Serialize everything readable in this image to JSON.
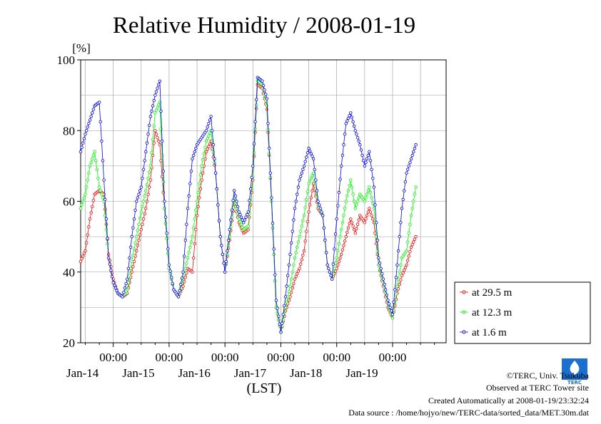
{
  "chart_data": {
    "type": "line",
    "title": "Relative Humidity / 2008-01-19",
    "ylabel": "[%]",
    "xlabel": "(LST)",
    "ylim": [
      20,
      100
    ],
    "yticks": [
      "20",
      "40",
      "60",
      "80",
      "100"
    ],
    "xlim_days": [
      "2008-01-13 10:00",
      "2008-01-19 23:00"
    ],
    "time_ticks": [
      {
        "label": "00:00",
        "day": "Jan-14"
      },
      {
        "label": "00:00",
        "day": "Jan-15"
      },
      {
        "label": "00:00",
        "day": "Jan-16"
      },
      {
        "label": "00:00",
        "day": "Jan-17"
      },
      {
        "label": "00:00",
        "day": "Jan-18"
      },
      {
        "label": "00:00",
        "day": "Jan-19"
      }
    ],
    "grid": true,
    "legend_position": "right",
    "series": [
      {
        "name": "at 29.5 m",
        "color": "#ff0000",
        "points": [
          [
            "2008-01-13 10:00",
            43
          ],
          [
            "2008-01-13 12:00",
            46
          ],
          [
            "2008-01-13 14:00",
            55
          ],
          [
            "2008-01-13 16:00",
            62
          ],
          [
            "2008-01-13 18:00",
            63
          ],
          [
            "2008-01-13 20:00",
            62
          ],
          [
            "2008-01-13 22:00",
            45
          ],
          [
            "2008-01-14 00:00",
            38
          ],
          [
            "2008-01-14 02:00",
            34
          ],
          [
            "2008-01-14 04:00",
            33
          ],
          [
            "2008-01-14 06:00",
            34
          ],
          [
            "2008-01-14 08:00",
            40
          ],
          [
            "2008-01-14 10:00",
            46
          ],
          [
            "2008-01-14 12:00",
            52
          ],
          [
            "2008-01-14 14:00",
            58
          ],
          [
            "2008-01-14 16:00",
            66
          ],
          [
            "2008-01-14 18:00",
            80
          ],
          [
            "2008-01-14 20:00",
            76
          ],
          [
            "2008-01-14 22:00",
            58
          ],
          [
            "2008-01-15 00:00",
            41
          ],
          [
            "2008-01-15 02:00",
            35
          ],
          [
            "2008-01-15 04:00",
            33
          ],
          [
            "2008-01-15 06:00",
            36
          ],
          [
            "2008-01-15 08:00",
            41
          ],
          [
            "2008-01-15 10:00",
            40
          ],
          [
            "2008-01-15 12:00",
            56
          ],
          [
            "2008-01-15 14:00",
            66
          ],
          [
            "2008-01-15 16:00",
            74
          ],
          [
            "2008-01-15 18:00",
            77
          ],
          [
            "2008-01-15 20:00",
            68
          ],
          [
            "2008-01-15 22:00",
            50
          ],
          [
            "2008-01-16 00:00",
            40
          ],
          [
            "2008-01-16 02:00",
            49
          ],
          [
            "2008-01-16 04:00",
            60
          ],
          [
            "2008-01-16 06:00",
            54
          ],
          [
            "2008-01-16 08:00",
            51
          ],
          [
            "2008-01-16 10:00",
            52
          ],
          [
            "2008-01-16 12:00",
            66
          ],
          [
            "2008-01-16 14:00",
            93
          ],
          [
            "2008-01-16 16:00",
            92
          ],
          [
            "2008-01-16 18:00",
            86
          ],
          [
            "2008-01-16 20:00",
            60
          ],
          [
            "2008-01-16 22:00",
            30
          ],
          [
            "2008-01-17 00:00",
            23
          ],
          [
            "2008-01-17 02:00",
            29
          ],
          [
            "2008-01-17 04:00",
            33
          ],
          [
            "2008-01-17 06:00",
            38
          ],
          [
            "2008-01-17 08:00",
            41
          ],
          [
            "2008-01-17 10:00",
            46
          ],
          [
            "2008-01-17 12:00",
            57
          ],
          [
            "2008-01-17 14:00",
            65
          ],
          [
            "2008-01-17 16:00",
            58
          ],
          [
            "2008-01-17 18:00",
            56
          ],
          [
            "2008-01-17 20:00",
            42
          ],
          [
            "2008-01-17 22:00",
            38
          ],
          [
            "2008-01-18 00:00",
            41
          ],
          [
            "2008-01-18 02:00",
            45
          ],
          [
            "2008-01-18 04:00",
            50
          ],
          [
            "2008-01-18 06:00",
            55
          ],
          [
            "2008-01-18 08:00",
            51
          ],
          [
            "2008-01-18 10:00",
            56
          ],
          [
            "2008-01-18 12:00",
            54
          ],
          [
            "2008-01-18 14:00",
            58
          ],
          [
            "2008-01-18 16:00",
            54
          ],
          [
            "2008-01-18 18:00",
            42
          ],
          [
            "2008-01-18 20:00",
            36
          ],
          [
            "2008-01-18 22:00",
            30
          ],
          [
            "2008-01-19 00:00",
            27
          ],
          [
            "2008-01-19 02:00",
            34
          ],
          [
            "2008-01-19 04:00",
            39
          ],
          [
            "2008-01-19 06:00",
            42
          ],
          [
            "2008-01-19 08:00",
            47
          ],
          [
            "2008-01-19 10:00",
            50
          ]
        ]
      },
      {
        "name": "at 12.3 m",
        "color": "#00ff00",
        "points": [
          [
            "2008-01-13 10:00",
            58
          ],
          [
            "2008-01-13 12:00",
            62
          ],
          [
            "2008-01-13 14:00",
            70
          ],
          [
            "2008-01-13 16:00",
            74
          ],
          [
            "2008-01-13 18:00",
            64
          ],
          [
            "2008-01-13 20:00",
            60
          ],
          [
            "2008-01-13 22:00",
            44
          ],
          [
            "2008-01-14 00:00",
            37
          ],
          [
            "2008-01-14 02:00",
            34
          ],
          [
            "2008-01-14 04:00",
            33
          ],
          [
            "2008-01-14 06:00",
            35
          ],
          [
            "2008-01-14 08:00",
            43
          ],
          [
            "2008-01-14 10:00",
            50
          ],
          [
            "2008-01-14 12:00",
            57
          ],
          [
            "2008-01-14 14:00",
            63
          ],
          [
            "2008-01-14 16:00",
            70
          ],
          [
            "2008-01-14 18:00",
            85
          ],
          [
            "2008-01-14 20:00",
            88
          ],
          [
            "2008-01-14 22:00",
            58
          ],
          [
            "2008-01-15 00:00",
            41
          ],
          [
            "2008-01-15 02:00",
            35
          ],
          [
            "2008-01-15 04:00",
            33
          ],
          [
            "2008-01-15 06:00",
            38
          ],
          [
            "2008-01-15 08:00",
            44
          ],
          [
            "2008-01-15 10:00",
            50
          ],
          [
            "2008-01-15 12:00",
            60
          ],
          [
            "2008-01-15 14:00",
            70
          ],
          [
            "2008-01-15 16:00",
            77
          ],
          [
            "2008-01-15 18:00",
            80
          ],
          [
            "2008-01-15 20:00",
            68
          ],
          [
            "2008-01-15 22:00",
            50
          ],
          [
            "2008-01-16 00:00",
            40
          ],
          [
            "2008-01-16 02:00",
            50
          ],
          [
            "2008-01-16 04:00",
            61
          ],
          [
            "2008-01-16 06:00",
            55
          ],
          [
            "2008-01-16 08:00",
            52
          ],
          [
            "2008-01-16 10:00",
            53
          ],
          [
            "2008-01-16 12:00",
            67
          ],
          [
            "2008-01-16 14:00",
            94
          ],
          [
            "2008-01-16 16:00",
            93
          ],
          [
            "2008-01-16 18:00",
            87
          ],
          [
            "2008-01-16 20:00",
            60
          ],
          [
            "2008-01-16 22:00",
            30
          ],
          [
            "2008-01-17 00:00",
            23
          ],
          [
            "2008-01-17 02:00",
            30
          ],
          [
            "2008-01-17 04:00",
            36
          ],
          [
            "2008-01-17 06:00",
            44
          ],
          [
            "2008-01-17 08:00",
            50
          ],
          [
            "2008-01-17 10:00",
            56
          ],
          [
            "2008-01-17 12:00",
            65
          ],
          [
            "2008-01-17 14:00",
            68
          ],
          [
            "2008-01-17 16:00",
            59
          ],
          [
            "2008-01-17 18:00",
            56
          ],
          [
            "2008-01-17 20:00",
            42
          ],
          [
            "2008-01-17 22:00",
            38
          ],
          [
            "2008-01-18 00:00",
            44
          ],
          [
            "2008-01-18 02:00",
            52
          ],
          [
            "2008-01-18 04:00",
            60
          ],
          [
            "2008-01-18 06:00",
            66
          ],
          [
            "2008-01-18 08:00",
            58
          ],
          [
            "2008-01-18 10:00",
            62
          ],
          [
            "2008-01-18 12:00",
            60
          ],
          [
            "2008-01-18 14:00",
            64
          ],
          [
            "2008-01-18 16:00",
            58
          ],
          [
            "2008-01-18 18:00",
            42
          ],
          [
            "2008-01-18 20:00",
            37
          ],
          [
            "2008-01-18 22:00",
            31
          ],
          [
            "2008-01-19 00:00",
            27
          ],
          [
            "2008-01-19 02:00",
            36
          ],
          [
            "2008-01-19 04:00",
            44
          ],
          [
            "2008-01-19 06:00",
            46
          ],
          [
            "2008-01-19 08:00",
            56
          ],
          [
            "2008-01-19 10:00",
            64
          ]
        ]
      },
      {
        "name": "at 1.6 m",
        "color": "#0000ff",
        "points": [
          [
            "2008-01-13 10:00",
            74
          ],
          [
            "2008-01-13 12:00",
            79
          ],
          [
            "2008-01-13 14:00",
            83
          ],
          [
            "2008-01-13 16:00",
            87
          ],
          [
            "2008-01-13 18:00",
            88
          ],
          [
            "2008-01-13 20:00",
            66
          ],
          [
            "2008-01-13 22:00",
            44
          ],
          [
            "2008-01-14 00:00",
            37
          ],
          [
            "2008-01-14 02:00",
            34
          ],
          [
            "2008-01-14 04:00",
            33
          ],
          [
            "2008-01-14 06:00",
            38
          ],
          [
            "2008-01-14 08:00",
            50
          ],
          [
            "2008-01-14 10:00",
            60
          ],
          [
            "2008-01-14 12:00",
            64
          ],
          [
            "2008-01-14 14:00",
            74
          ],
          [
            "2008-01-14 16:00",
            84
          ],
          [
            "2008-01-14 18:00",
            90
          ],
          [
            "2008-01-14 20:00",
            94
          ],
          [
            "2008-01-14 22:00",
            60
          ],
          [
            "2008-01-15 00:00",
            42
          ],
          [
            "2008-01-15 02:00",
            35
          ],
          [
            "2008-01-15 04:00",
            33
          ],
          [
            "2008-01-15 06:00",
            40
          ],
          [
            "2008-01-15 08:00",
            58
          ],
          [
            "2008-01-15 10:00",
            72
          ],
          [
            "2008-01-15 12:00",
            76
          ],
          [
            "2008-01-15 14:00",
            78
          ],
          [
            "2008-01-15 16:00",
            80
          ],
          [
            "2008-01-15 18:00",
            84
          ],
          [
            "2008-01-15 20:00",
            68
          ],
          [
            "2008-01-15 22:00",
            50
          ],
          [
            "2008-01-16 00:00",
            40
          ],
          [
            "2008-01-16 02:00",
            52
          ],
          [
            "2008-01-16 04:00",
            63
          ],
          [
            "2008-01-16 06:00",
            57
          ],
          [
            "2008-01-16 08:00",
            54
          ],
          [
            "2008-01-16 10:00",
            57
          ],
          [
            "2008-01-16 12:00",
            70
          ],
          [
            "2008-01-16 14:00",
            95
          ],
          [
            "2008-01-16 16:00",
            94
          ],
          [
            "2008-01-16 18:00",
            89
          ],
          [
            "2008-01-16 20:00",
            61
          ],
          [
            "2008-01-16 22:00",
            32
          ],
          [
            "2008-01-17 00:00",
            23
          ],
          [
            "2008-01-17 02:00",
            33
          ],
          [
            "2008-01-17 04:00",
            45
          ],
          [
            "2008-01-17 06:00",
            58
          ],
          [
            "2008-01-17 08:00",
            66
          ],
          [
            "2008-01-17 10:00",
            70
          ],
          [
            "2008-01-17 12:00",
            75
          ],
          [
            "2008-01-17 14:00",
            72
          ],
          [
            "2008-01-17 16:00",
            60
          ],
          [
            "2008-01-17 18:00",
            56
          ],
          [
            "2008-01-17 20:00",
            42
          ],
          [
            "2008-01-17 22:00",
            38
          ],
          [
            "2008-01-18 00:00",
            55
          ],
          [
            "2008-01-18 02:00",
            70
          ],
          [
            "2008-01-18 04:00",
            82
          ],
          [
            "2008-01-18 06:00",
            85
          ],
          [
            "2008-01-18 08:00",
            80
          ],
          [
            "2008-01-18 10:00",
            76
          ],
          [
            "2008-01-18 12:00",
            70
          ],
          [
            "2008-01-18 14:00",
            74
          ],
          [
            "2008-01-18 16:00",
            64
          ],
          [
            "2008-01-18 18:00",
            44
          ],
          [
            "2008-01-18 20:00",
            38
          ],
          [
            "2008-01-18 22:00",
            32
          ],
          [
            "2008-01-19 00:00",
            28
          ],
          [
            "2008-01-19 02:00",
            42
          ],
          [
            "2008-01-19 04:00",
            58
          ],
          [
            "2008-01-19 06:00",
            68
          ],
          [
            "2008-01-19 08:00",
            72
          ],
          [
            "2008-01-19 10:00",
            76
          ]
        ]
      }
    ]
  },
  "footer": {
    "copyright": "©TERC, Univ. Tsukuba",
    "observed": "Observed at TERC Tower site",
    "created": "Created Automatically at 2008-01-19/23:32:24",
    "source": "Data source : /home/hojyo/new/TERC-data/sorted_data/MET.30m.dat"
  },
  "logo": {
    "text": "TERC",
    "color": "#1a6fd0"
  }
}
